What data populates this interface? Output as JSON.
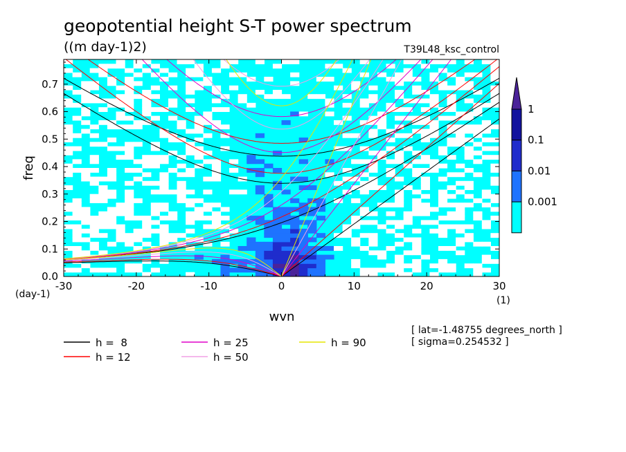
{
  "title": "geopotential height S-T power spectrum",
  "units": "((m day-1)2)",
  "experiment": "T39L48_ksc_control",
  "info_lines": [
    "[ lat=-1.48755 degrees_north ]",
    "[ sigma=0.254532 ]"
  ],
  "colors": {
    "level_0": "#00ffff",
    "level_1": "#1e73ff",
    "level_2": "#1f2ccc",
    "level_3": "#12129e",
    "top": "#4b2399",
    "h8": "#000000",
    "h12": "#ff0000",
    "h25": "#e000c8",
    "h50": "#f0a0e6",
    "h90": "#e6e600"
  },
  "chart_data": {
    "type": "heatmap",
    "title": "geopotential height S-T power spectrum",
    "xlabel": "wvn",
    "ylabel": "freq",
    "x_unit_label": "(1)",
    "y_unit_label": "(day-1)",
    "xlim": [
      -30,
      30
    ],
    "ylim": [
      0,
      0.79
    ],
    "xticks": [
      -30,
      -20,
      -10,
      0,
      10,
      20,
      30
    ],
    "yticks": [
      0.0,
      0.1,
      0.2,
      0.3,
      0.4,
      0.5,
      0.6,
      0.7
    ],
    "xtick_labels": [
      "-30",
      "-20",
      "-10",
      "0",
      "10",
      "20",
      "30"
    ],
    "ytick_labels": [
      "0.0",
      "0.1",
      "0.2",
      "0.3",
      "0.4",
      "0.5",
      "0.6",
      "0.7"
    ],
    "colorbar": {
      "levels": [
        0.001,
        0.01,
        0.1,
        1
      ],
      "labels": [
        "0.001",
        "0.01",
        "0.1",
        "1"
      ],
      "fill_colors": [
        "#00ffff",
        "#1e73ff",
        "#1f2ccc",
        "#12129e"
      ],
      "top_color": "#4b2399"
    },
    "dispersion_curves": [
      {
        "name": "h =  8",
        "h": 8,
        "color": "#000000"
      },
      {
        "name": "h = 12",
        "h": 12,
        "color": "#ff0000"
      },
      {
        "name": "h = 25",
        "h": 25,
        "color": "#e000c8"
      },
      {
        "name": "h = 50",
        "h": 50,
        "color": "#f0a0e6"
      },
      {
        "name": "h = 90",
        "h": 90,
        "color": "#e6e600"
      }
    ]
  }
}
